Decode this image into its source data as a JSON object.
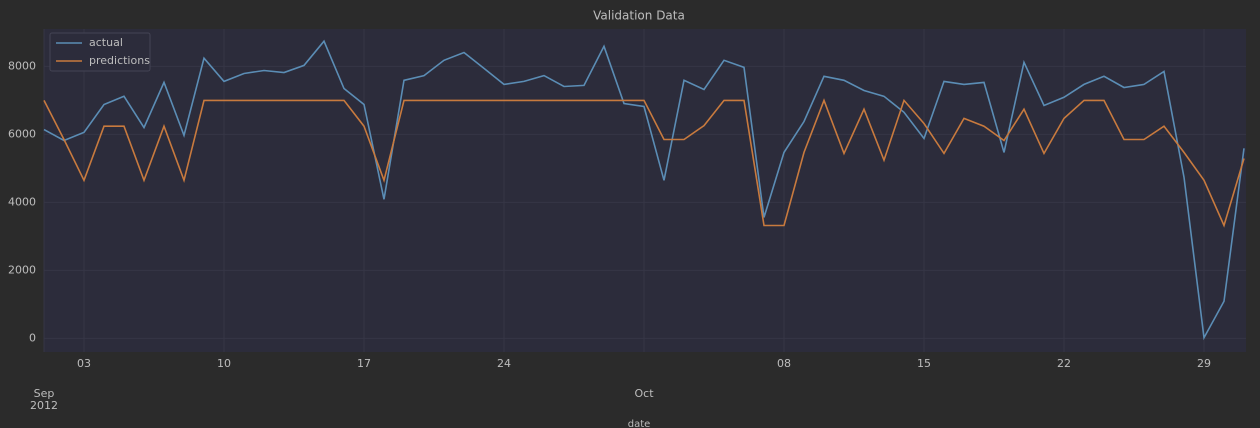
{
  "chart_data": {
    "type": "line",
    "title": "Validation Data",
    "xlabel": "date",
    "x": [
      "2012-09-01",
      "2012-09-02",
      "2012-09-03",
      "2012-09-04",
      "2012-09-05",
      "2012-09-06",
      "2012-09-07",
      "2012-09-08",
      "2012-09-09",
      "2012-09-10",
      "2012-09-11",
      "2012-09-12",
      "2012-09-13",
      "2012-09-14",
      "2012-09-15",
      "2012-09-16",
      "2012-09-17",
      "2012-09-18",
      "2012-09-19",
      "2012-09-20",
      "2012-09-21",
      "2012-09-22",
      "2012-09-23",
      "2012-09-24",
      "2012-09-25",
      "2012-09-26",
      "2012-09-27",
      "2012-09-28",
      "2012-09-29",
      "2012-09-30",
      "2012-10-01",
      "2012-10-02",
      "2012-10-03",
      "2012-10-04",
      "2012-10-05",
      "2012-10-06",
      "2012-10-07",
      "2012-10-08",
      "2012-10-09",
      "2012-10-10",
      "2012-10-11",
      "2012-10-12",
      "2012-10-13",
      "2012-10-14",
      "2012-10-15",
      "2012-10-16",
      "2012-10-17",
      "2012-10-18",
      "2012-10-19",
      "2012-10-20",
      "2012-10-21",
      "2012-10-22",
      "2012-10-23",
      "2012-10-24",
      "2012-10-25",
      "2012-10-26",
      "2012-10-27",
      "2012-10-28",
      "2012-10-29",
      "2012-10-30",
      "2012-10-31"
    ],
    "series": [
      {
        "name": "actual",
        "color": "#5b8db5",
        "values": [
          6140,
          5820,
          6060,
          6880,
          7120,
          6200,
          7530,
          5970,
          8240,
          7560,
          7790,
          7880,
          7820,
          8030,
          8740,
          7350,
          6880,
          4090,
          7590,
          7730,
          8180,
          8410,
          7940,
          7470,
          7560,
          7730,
          7410,
          7440,
          8590,
          6910,
          6820,
          4650,
          7590,
          7320,
          8180,
          7970,
          3560,
          5470,
          6380,
          7710,
          7590,
          7290,
          7120,
          6650,
          5880,
          7560,
          7470,
          7530,
          5470,
          8120,
          6850,
          7090,
          7470,
          7710,
          7380,
          7470,
          7850,
          4740,
          20,
          1090,
          5590
        ]
      },
      {
        "name": "predictions",
        "color": "#c87a3e",
        "values": [
          7000,
          5850,
          4650,
          6240,
          6240,
          4650,
          6240,
          4650,
          7000,
          7000,
          7000,
          7000,
          7000,
          7000,
          7000,
          7000,
          6240,
          4650,
          7000,
          7000,
          7000,
          7000,
          7000,
          7000,
          7000,
          7000,
          7000,
          7000,
          7000,
          7000,
          7000,
          5850,
          5850,
          6260,
          7000,
          7000,
          3320,
          3320,
          5470,
          7000,
          5440,
          6740,
          5240,
          7000,
          6320,
          5440,
          6470,
          6240,
          5820,
          6740,
          5440,
          6470,
          7000,
          7000,
          5850,
          5850,
          6240,
          5470,
          4650,
          3320,
          5290
        ]
      }
    ],
    "xlim": [
      "2012-09-01",
      "2012-10-31"
    ],
    "xticks_minor": [
      {
        "value": "2012-09-03",
        "label": "03"
      },
      {
        "value": "2012-09-10",
        "label": "10"
      },
      {
        "value": "2012-09-17",
        "label": "17"
      },
      {
        "value": "2012-09-24",
        "label": "24"
      },
      {
        "value": "2012-10-08",
        "label": "08"
      },
      {
        "value": "2012-10-15",
        "label": "15"
      },
      {
        "value": "2012-10-22",
        "label": "22"
      },
      {
        "value": "2012-10-29",
        "label": "29"
      }
    ],
    "xticks_major": [
      {
        "value": "2012-09-01",
        "label": "Sep\n2012"
      },
      {
        "value": "2012-10-01",
        "label": "Oct"
      }
    ],
    "ylim": [
      -400,
      9100
    ],
    "yticks": [
      0,
      2000,
      4000,
      6000,
      8000
    ],
    "grid": true,
    "legend": "upper left"
  }
}
